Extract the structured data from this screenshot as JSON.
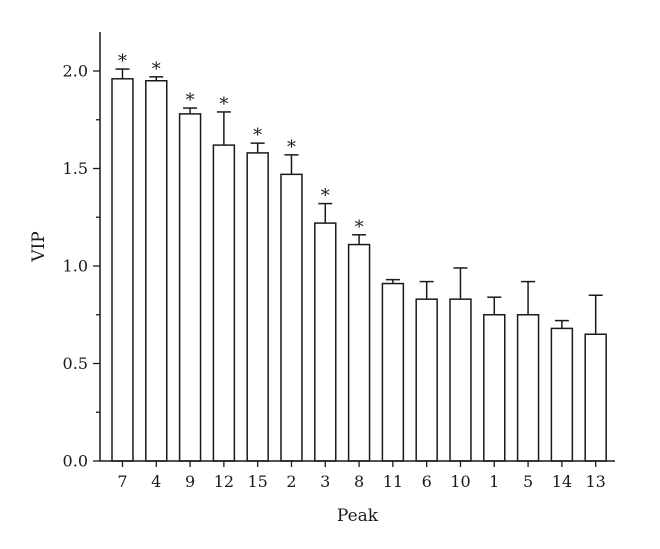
{
  "chart_data": {
    "type": "bar",
    "xlabel": "Peak",
    "ylabel": "VIP",
    "ylim": [
      0,
      2.2
    ],
    "yticks": [
      "0.0",
      "0.5",
      "1.0",
      "1.5",
      "2.0"
    ],
    "categories": [
      "7",
      "4",
      "9",
      "12",
      "15",
      "2",
      "3",
      "8",
      "11",
      "6",
      "10",
      "1",
      "5",
      "14",
      "13"
    ],
    "values": [
      1.96,
      1.95,
      1.78,
      1.62,
      1.58,
      1.47,
      1.22,
      1.11,
      0.91,
      0.83,
      0.83,
      0.75,
      0.75,
      0.68,
      0.65
    ],
    "errors": [
      0.05,
      0.02,
      0.03,
      0.17,
      0.05,
      0.1,
      0.1,
      0.05,
      0.02,
      0.09,
      0.16,
      0.09,
      0.17,
      0.04,
      0.2
    ],
    "significance": [
      "*",
      "*",
      "*",
      "*",
      "*",
      "*",
      "*",
      "*",
      "",
      "",
      "",
      "",
      "",
      "",
      ""
    ],
    "grid": false,
    "colors": {
      "bar_fill": "#ffffff",
      "stroke": "#1a1a1a"
    }
  }
}
